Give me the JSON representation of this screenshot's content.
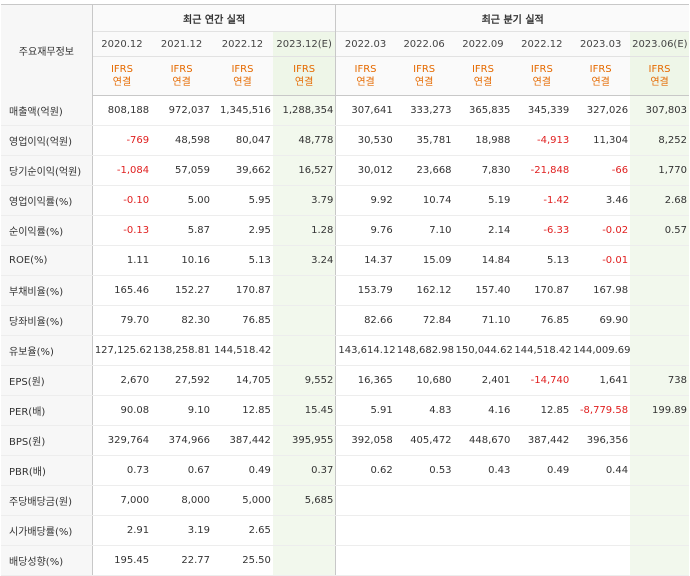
{
  "header": {
    "row_title": "주요재무정보",
    "annual_title": "최근 연간 실적",
    "quarterly_title": "최근 분기 실적",
    "periods": [
      {
        "label": "2020.12",
        "ifrs": "IFRS",
        "basis": "연결"
      },
      {
        "label": "2021.12",
        "ifrs": "IFRS",
        "basis": "연결"
      },
      {
        "label": "2022.12",
        "ifrs": "IFRS",
        "basis": "연결"
      },
      {
        "label": "2023.12(E)",
        "ifrs": "IFRS",
        "basis": "연결"
      },
      {
        "label": "2022.03",
        "ifrs": "IFRS",
        "basis": "연결"
      },
      {
        "label": "2022.06",
        "ifrs": "IFRS",
        "basis": "연결"
      },
      {
        "label": "2022.09",
        "ifrs": "IFRS",
        "basis": "연결"
      },
      {
        "label": "2022.12",
        "ifrs": "IFRS",
        "basis": "연결"
      },
      {
        "label": "2023.03",
        "ifrs": "IFRS",
        "basis": "연결"
      },
      {
        "label": "2023.06(E)",
        "ifrs": "IFRS",
        "basis": "연결"
      }
    ]
  },
  "rows": [
    {
      "label": "매출액(억원)",
      "values": [
        "808,188",
        "972,037",
        "1,345,516",
        "1,288,354",
        "307,641",
        "333,273",
        "365,835",
        "345,339",
        "327,026",
        "307,803"
      ]
    },
    {
      "label": "영업이익(억원)",
      "values": [
        "-769",
        "48,598",
        "80,047",
        "48,778",
        "30,530",
        "35,781",
        "18,988",
        "-4,913",
        "11,304",
        "8,252"
      ]
    },
    {
      "label": "당기순이익(억원)",
      "values": [
        "-1,084",
        "57,059",
        "39,662",
        "16,527",
        "30,012",
        "23,668",
        "7,830",
        "-21,848",
        "-66",
        "1,770"
      ]
    },
    {
      "label": "영업이익률(%)",
      "values": [
        "-0.10",
        "5.00",
        "5.95",
        "3.79",
        "9.92",
        "10.74",
        "5.19",
        "-1.42",
        "3.46",
        "2.68"
      ]
    },
    {
      "label": "순이익률(%)",
      "values": [
        "-0.13",
        "5.87",
        "2.95",
        "1.28",
        "9.76",
        "7.10",
        "2.14",
        "-6.33",
        "-0.02",
        "0.57"
      ]
    },
    {
      "label": "ROE(%)",
      "values": [
        "1.11",
        "10.16",
        "5.13",
        "3.24",
        "14.37",
        "15.09",
        "14.84",
        "5.13",
        "-0.01",
        ""
      ]
    },
    {
      "label": "부채비율(%)",
      "values": [
        "165.46",
        "152.27",
        "170.87",
        "",
        "153.79",
        "162.12",
        "157.40",
        "170.87",
        "167.98",
        ""
      ]
    },
    {
      "label": "당좌비율(%)",
      "values": [
        "79.70",
        "82.30",
        "76.85",
        "",
        "82.66",
        "72.84",
        "71.10",
        "76.85",
        "69.90",
        ""
      ]
    },
    {
      "label": "유보율(%)",
      "values": [
        "127,125.62",
        "138,258.81",
        "144,518.42",
        "",
        "143,614.12",
        "148,682.98",
        "150,044.62",
        "144,518.42",
        "144,009.69",
        ""
      ]
    },
    {
      "label": "EPS(원)",
      "values": [
        "2,670",
        "27,592",
        "14,705",
        "9,552",
        "16,365",
        "10,680",
        "2,401",
        "-14,740",
        "1,641",
        "738"
      ]
    },
    {
      "label": "PER(배)",
      "values": [
        "90.08",
        "9.10",
        "12.85",
        "15.45",
        "5.91",
        "4.83",
        "4.16",
        "12.85",
        "-8,779.58",
        "199.89"
      ]
    },
    {
      "label": "BPS(원)",
      "values": [
        "329,764",
        "374,966",
        "387,442",
        "395,955",
        "392,058",
        "405,472",
        "448,670",
        "387,442",
        "396,356",
        ""
      ]
    },
    {
      "label": "PBR(배)",
      "values": [
        "0.73",
        "0.67",
        "0.49",
        "0.37",
        "0.62",
        "0.53",
        "0.43",
        "0.49",
        "0.44",
        ""
      ]
    },
    {
      "label": "주당배당금(원)",
      "values": [
        "7,000",
        "8,000",
        "5,000",
        "5,685",
        "",
        "",
        "",
        "",
        "",
        ""
      ]
    },
    {
      "label": "시가배당률(%)",
      "values": [
        "2.91",
        "3.19",
        "2.65",
        "",
        "",
        "",
        "",
        "",
        "",
        ""
      ]
    },
    {
      "label": "배당성향(%)",
      "values": [
        "195.45",
        "22.77",
        "25.50",
        "",
        "",
        "",
        "",
        "",
        "",
        ""
      ]
    }
  ],
  "colors": {
    "negative": "#e02020",
    "ifrs": "#e56a00",
    "estimate_bg": "#f2f8ed"
  }
}
